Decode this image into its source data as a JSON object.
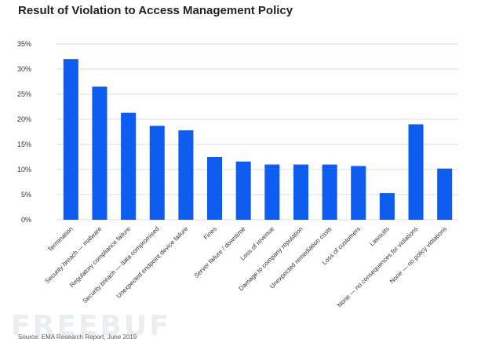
{
  "watermark": "FREEBUF",
  "source": "Source: EMA Research Report, June 2019",
  "colors": {
    "bar": "#0d5ef0",
    "grid": "#dcdcdc"
  },
  "chart_data": {
    "type": "bar",
    "title": "Result of Violation to Access Management Policy",
    "xlabel": "",
    "ylabel": "",
    "ylim": [
      0,
      35
    ],
    "yticks": [
      "0%",
      "5%",
      "10%",
      "15%",
      "20%",
      "25%",
      "30%",
      "35%"
    ],
    "grid": true,
    "categories": [
      "Termination",
      "Security breach — malware",
      "Regulatory compliance failure",
      "Security breach — data compromised",
      "Unexpected endpoint device failure",
      "Fines",
      "Server failure / downtime",
      "Loss of revenue",
      "Damage to company reputation",
      "Unexpected remediation costs",
      "Loss of customers",
      "Lawsuits",
      "None — no consequences for violations",
      "None — no policy violations"
    ],
    "values": [
      32,
      26.5,
      21.3,
      18.7,
      17.8,
      12.5,
      11.6,
      11,
      11,
      11,
      10.7,
      5.3,
      19,
      10.2
    ]
  }
}
